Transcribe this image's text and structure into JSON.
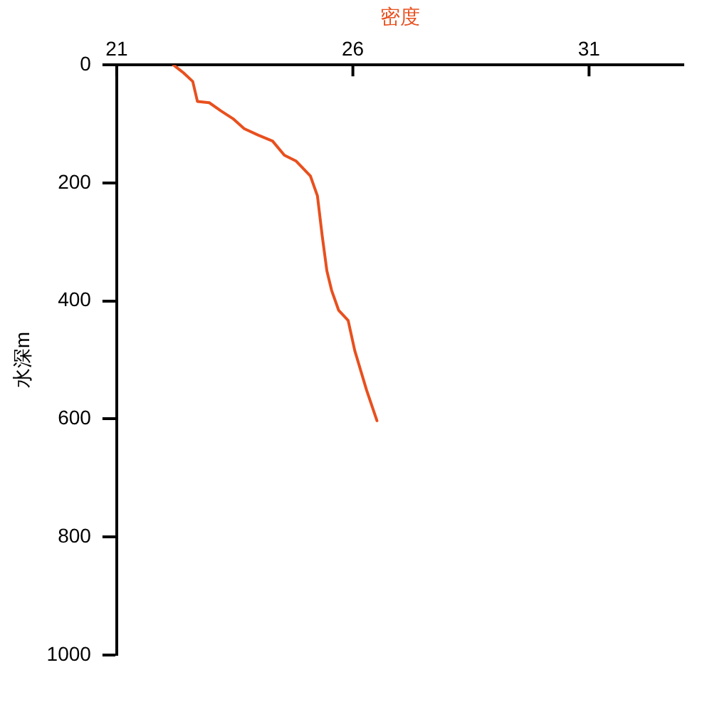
{
  "chart_data": {
    "type": "line",
    "xlabel": "密度",
    "ylabel": "水深m",
    "x": [
      22.2,
      22.41,
      22.61,
      22.71,
      22.96,
      23.21,
      23.46,
      23.7,
      24.0,
      24.3,
      24.55,
      24.8,
      25.1,
      25.25,
      25.35,
      25.45,
      25.55,
      25.7,
      25.9,
      26.04,
      26.29,
      26.51
    ],
    "series": [
      {
        "color": "#e8501e",
        "values": [
          0,
          13,
          28,
          62,
          64,
          78,
          91,
          108,
          119,
          129,
          153,
          163,
          188,
          222,
          289,
          349,
          382,
          416,
          433,
          484,
          551,
          603
        ]
      }
    ],
    "xlim": [
      21,
      33
    ],
    "xticks": [
      21,
      26,
      31
    ],
    "ylim": [
      1000,
      0
    ],
    "yticks": [
      0,
      200,
      400,
      600,
      800,
      1000
    ],
    "grid": false,
    "legend": false,
    "marker": "none",
    "line_style": "solid"
  }
}
